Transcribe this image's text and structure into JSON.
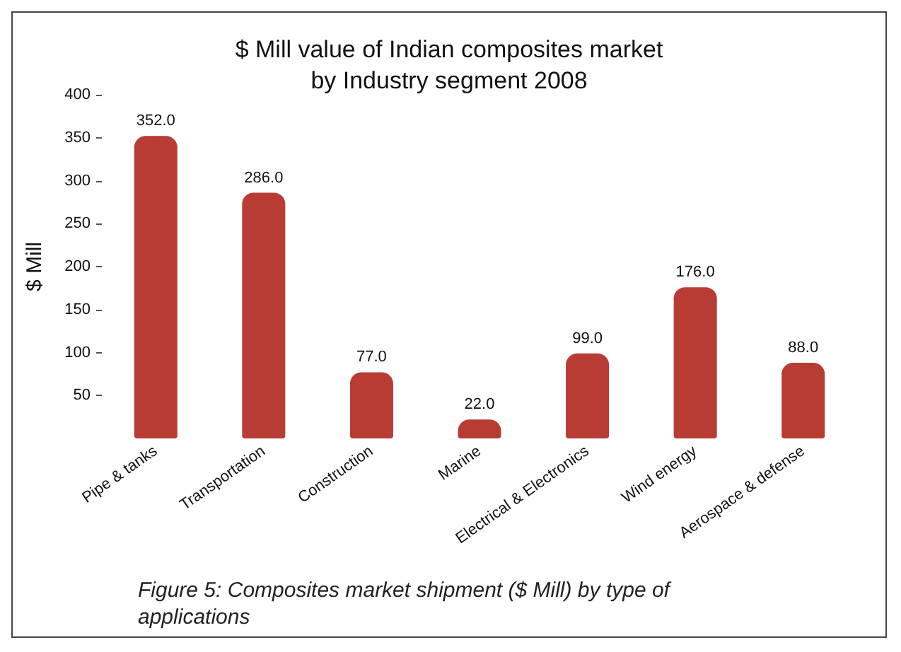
{
  "chart_data": {
    "type": "bar",
    "title": "$ Mill value of Indian composites market\nby Industry segment 2008",
    "ylabel": "$ Mill",
    "categories": [
      "Pipe & tanks",
      "Transportation",
      "Construction",
      "Marine",
      "Electrical & Electronics",
      "Wind energy",
      "Aerospace & defense"
    ],
    "values": [
      352.0,
      286.0,
      77.0,
      22.0,
      99.0,
      176.0,
      88.0
    ],
    "color": "#b83c34",
    "ylim": [
      0,
      400
    ],
    "yticks": [
      50,
      100,
      150,
      200,
      250,
      300,
      350,
      400
    ],
    "grid": false,
    "value_labels": [
      "352.0",
      "286.0",
      "77.0",
      "22.0",
      "99.0",
      "176.0",
      "88.0"
    ],
    "annotations": [
      "Figure 5: Composites market shipment ($ Mill) by type of applications"
    ]
  }
}
